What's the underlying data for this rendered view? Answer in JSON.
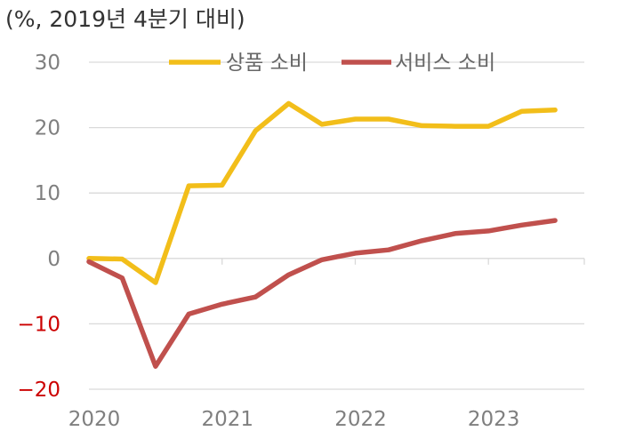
{
  "chart_data": {
    "type": "line",
    "unit_label": "(%, 2019년 4분기 대비)",
    "x": [
      "2020Q1",
      "2020Q2",
      "2020Q3",
      "2020Q4",
      "2021Q1",
      "2021Q2",
      "2021Q3",
      "2021Q4",
      "2022Q1",
      "2022Q2",
      "2022Q3",
      "2022Q4",
      "2023Q1",
      "2023Q2",
      "2023Q3"
    ],
    "x_tick_labels": [
      "2020",
      "2021",
      "2022",
      "2023"
    ],
    "ylim": [
      -20,
      30
    ],
    "y_ticks": [
      30,
      20,
      10,
      0,
      -10,
      -20
    ],
    "y_tick_labels": [
      "30",
      "20",
      "10",
      "0",
      "−10",
      "−20"
    ],
    "series": [
      {
        "name": "상품 소비",
        "color": "#F2BE1A",
        "values": [
          0.0,
          -0.1,
          -3.7,
          11.1,
          11.2,
          19.5,
          23.7,
          20.5,
          21.3,
          21.3,
          20.3,
          20.2,
          20.2,
          22.5,
          22.7
        ]
      },
      {
        "name": "서비스 소비",
        "color": "#C0504D",
        "values": [
          -0.5,
          -3.0,
          -16.5,
          -8.5,
          -7.0,
          -5.9,
          -2.5,
          -0.2,
          0.8,
          1.3,
          2.7,
          3.8,
          4.2,
          5.1,
          5.8
        ]
      }
    ],
    "negative_tick_color": "#CC0000",
    "positive_tick_color": "#7F7F7F",
    "grid": true,
    "legend": "top"
  }
}
